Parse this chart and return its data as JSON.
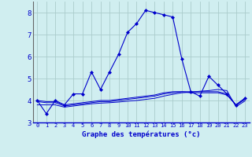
{
  "xlabel": "Graphe des températures (°c)",
  "hours": [
    0,
    1,
    2,
    3,
    4,
    5,
    6,
    7,
    8,
    9,
    10,
    11,
    12,
    13,
    14,
    15,
    16,
    17,
    18,
    19,
    20,
    21,
    22,
    23
  ],
  "temp_main": [
    4.0,
    3.4,
    4.0,
    3.8,
    4.3,
    4.3,
    5.3,
    4.5,
    5.3,
    6.1,
    7.1,
    7.5,
    8.1,
    8.0,
    7.9,
    7.8,
    5.9,
    4.4,
    4.2,
    5.1,
    4.7,
    4.3,
    3.8,
    4.1
  ],
  "temp_line2": [
    4.0,
    3.95,
    3.95,
    3.8,
    3.85,
    3.9,
    3.95,
    4.0,
    4.0,
    4.05,
    4.1,
    4.15,
    4.2,
    4.25,
    4.35,
    4.4,
    4.4,
    4.35,
    4.35,
    4.35,
    4.35,
    4.25,
    3.8,
    4.1
  ],
  "temp_line3": [
    3.95,
    3.9,
    3.9,
    3.75,
    3.8,
    3.85,
    3.9,
    3.95,
    3.95,
    4.0,
    4.05,
    4.1,
    4.15,
    4.2,
    4.3,
    4.35,
    4.4,
    4.4,
    4.4,
    4.4,
    4.4,
    4.3,
    3.78,
    4.05
  ],
  "temp_line4": [
    3.8,
    3.8,
    3.8,
    3.7,
    3.75,
    3.8,
    3.85,
    3.88,
    3.9,
    3.93,
    3.97,
    4.0,
    4.05,
    4.1,
    4.2,
    4.28,
    4.35,
    4.38,
    4.42,
    4.45,
    4.5,
    4.45,
    3.72,
    3.98
  ],
  "line_color": "#0000cc",
  "bg_color": "#d0eef0",
  "grid_color": "#aacccc",
  "ylim": [
    3.0,
    8.5
  ],
  "yticks": [
    3,
    4,
    5,
    6,
    7,
    8
  ],
  "xlim_min": -0.5,
  "xlim_max": 23.5
}
